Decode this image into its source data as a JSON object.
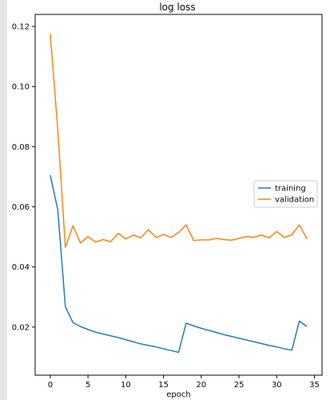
{
  "chart_data": {
    "type": "line",
    "title": "log loss",
    "xlabel": "epoch",
    "ylabel": "",
    "xlim": [
      -2,
      36
    ],
    "ylim": [
      0.004,
      0.124
    ],
    "xticks": [
      0,
      5,
      10,
      15,
      20,
      25,
      30,
      35
    ],
    "yticks": [
      0.02,
      0.04,
      0.06,
      0.08,
      0.1,
      0.12
    ],
    "xtick_labels": [
      "0",
      "5",
      "10",
      "15",
      "20",
      "25",
      "30",
      "35"
    ],
    "ytick_labels": [
      "0.02",
      "0.04",
      "0.06",
      "0.08",
      "0.10",
      "0.12"
    ],
    "grid": false,
    "legend_position": "center-right",
    "x": [
      0,
      1,
      2,
      3,
      4,
      5,
      6,
      7,
      8,
      9,
      10,
      11,
      12,
      13,
      14,
      15,
      16,
      17,
      18,
      19,
      20,
      21,
      22,
      23,
      24,
      25,
      26,
      27,
      28,
      29,
      30,
      31,
      32,
      33,
      34
    ],
    "series": [
      {
        "name": "training",
        "color": "#1f77b4",
        "values": [
          0.0705,
          0.059,
          0.0268,
          0.0215,
          0.0202,
          0.0192,
          0.0183,
          0.0177,
          0.0171,
          0.0165,
          0.0158,
          0.0151,
          0.0144,
          0.0139,
          0.0134,
          0.0128,
          0.0122,
          0.0116,
          0.0213,
          0.0204,
          0.0196,
          0.0189,
          0.0182,
          0.0175,
          0.0169,
          0.0163,
          0.0157,
          0.0151,
          0.0145,
          0.0139,
          0.0134,
          0.0128,
          0.0123,
          0.022,
          0.0202
        ]
      },
      {
        "name": "validation",
        "color": "#ff7f0e",
        "values": [
          0.1175,
          0.0855,
          0.0465,
          0.0537,
          0.048,
          0.0501,
          0.0483,
          0.0491,
          0.0484,
          0.0512,
          0.0493,
          0.0506,
          0.0497,
          0.0524,
          0.0498,
          0.0508,
          0.0498,
          0.0515,
          0.054,
          0.0488,
          0.049,
          0.049,
          0.0495,
          0.0491,
          0.0489,
          0.0495,
          0.0501,
          0.0499,
          0.0506,
          0.0497,
          0.0518,
          0.0498,
          0.0507,
          0.054,
          0.0493
        ]
      }
    ]
  }
}
